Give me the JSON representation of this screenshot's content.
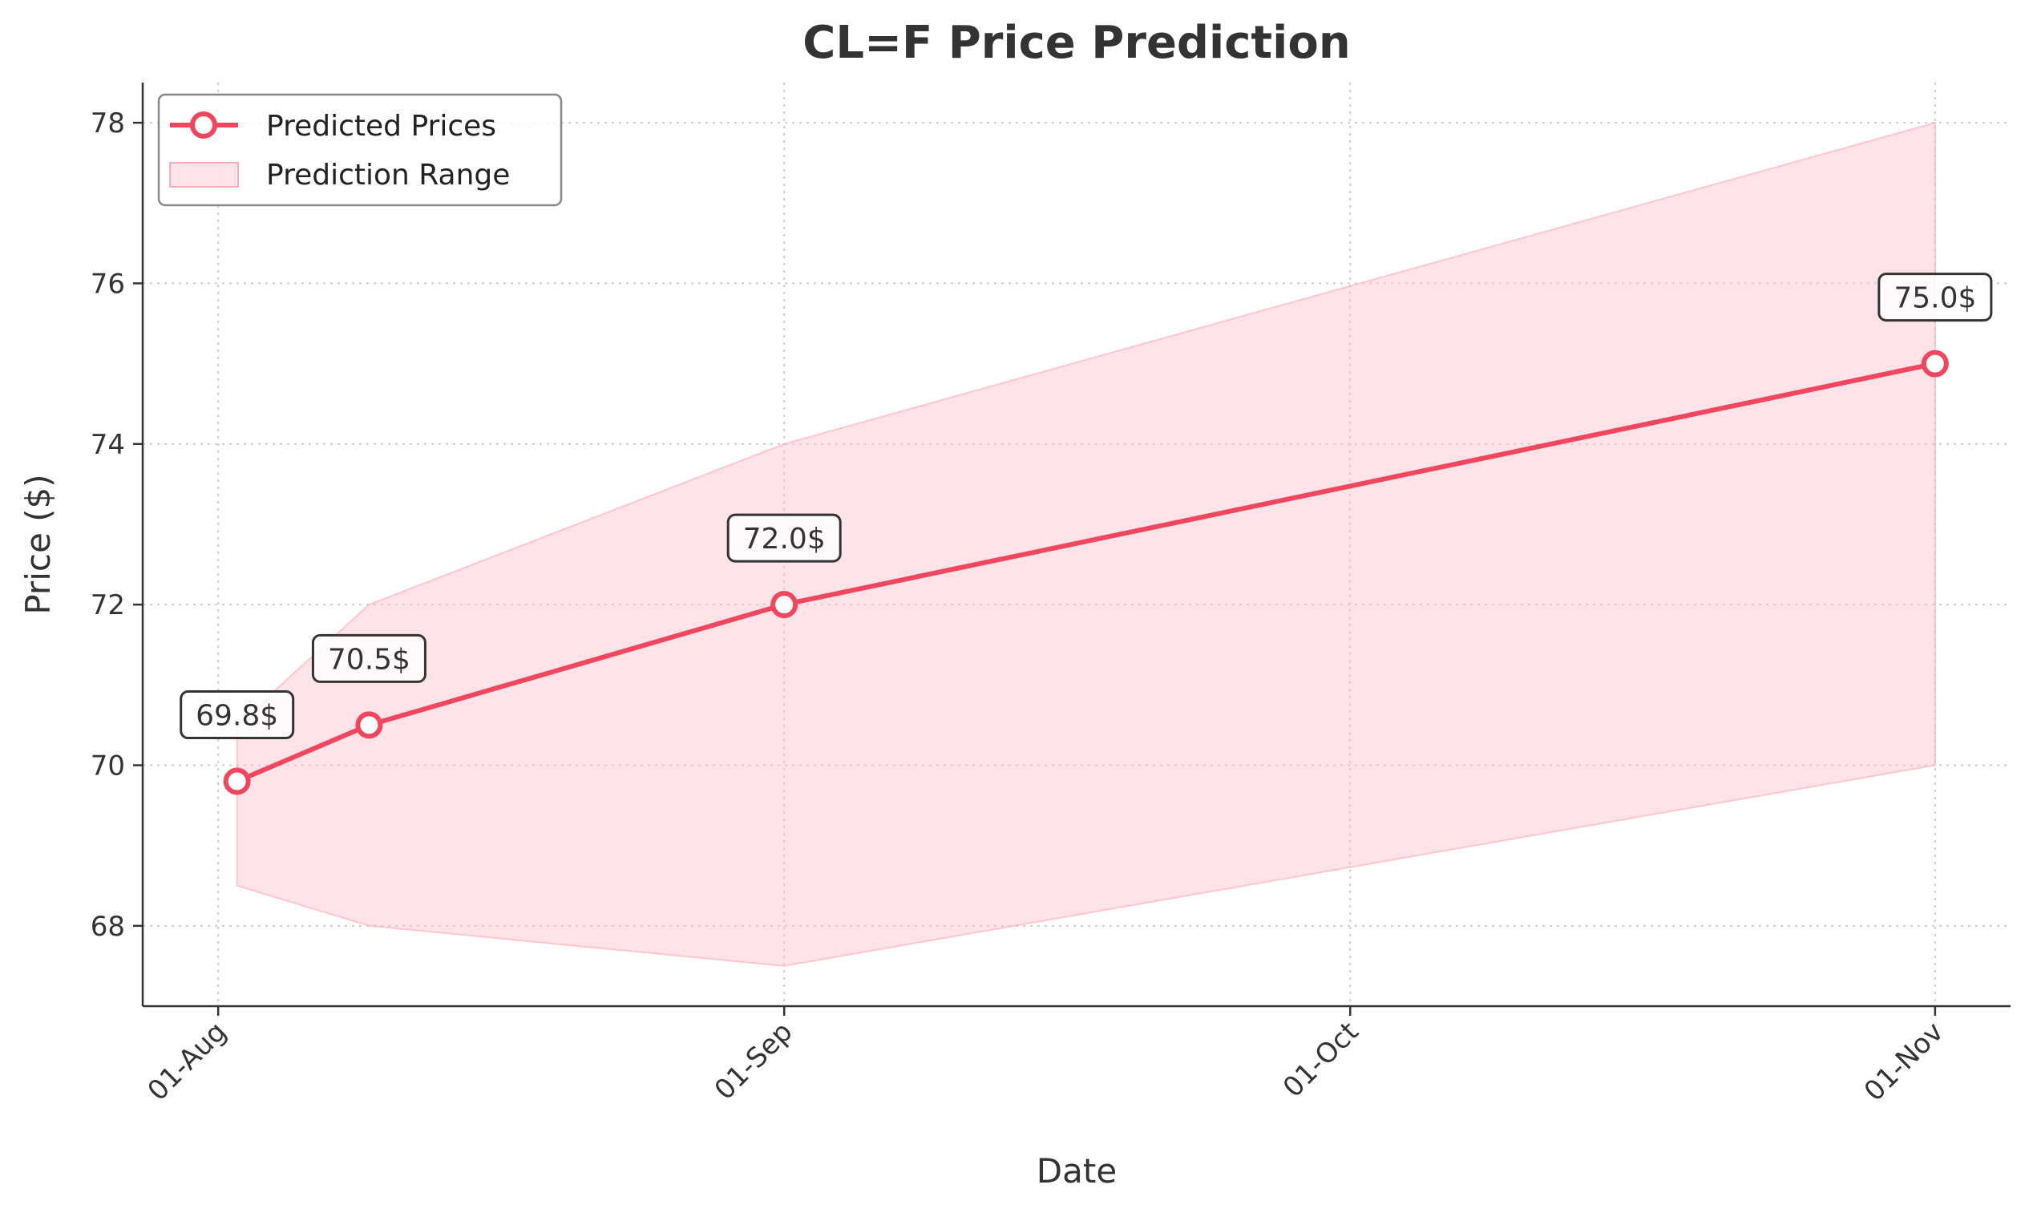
{
  "chart_data": {
    "type": "line",
    "title": "CL=F Price Prediction",
    "xlabel": "Date",
    "ylabel": "Price ($)",
    "x": [
      "2024-08-02",
      "2024-08-09",
      "2024-08-31",
      "2024-10-31"
    ],
    "x_ticks": [
      {
        "date": "2024-08-01",
        "label": "01-Aug"
      },
      {
        "date": "2024-08-31",
        "label": "01-Sep"
      },
      {
        "date": "2024-09-30",
        "label": "01-Oct"
      },
      {
        "date": "2024-10-31",
        "label": "01-Nov"
      }
    ],
    "xlim": [
      "2024-07-28",
      "2024-11-04"
    ],
    "ylim": [
      67.0,
      78.5
    ],
    "y_ticks": [
      68,
      70,
      72,
      74,
      76,
      78
    ],
    "series": [
      {
        "name": "Predicted Prices",
        "values": [
          69.8,
          70.5,
          72.0,
          75.0
        ],
        "labels": [
          "69.8$",
          "70.5$",
          "72.0$",
          "75.0$"
        ],
        "color": "#f0475f"
      }
    ],
    "range": {
      "name": "Prediction Range",
      "lower": [
        68.5,
        68.0,
        67.5,
        70.0
      ],
      "upper": [
        70.5,
        72.0,
        74.0,
        78.0
      ],
      "color": "#ffc0cb"
    },
    "grid": true,
    "legend_position": "top-left"
  }
}
